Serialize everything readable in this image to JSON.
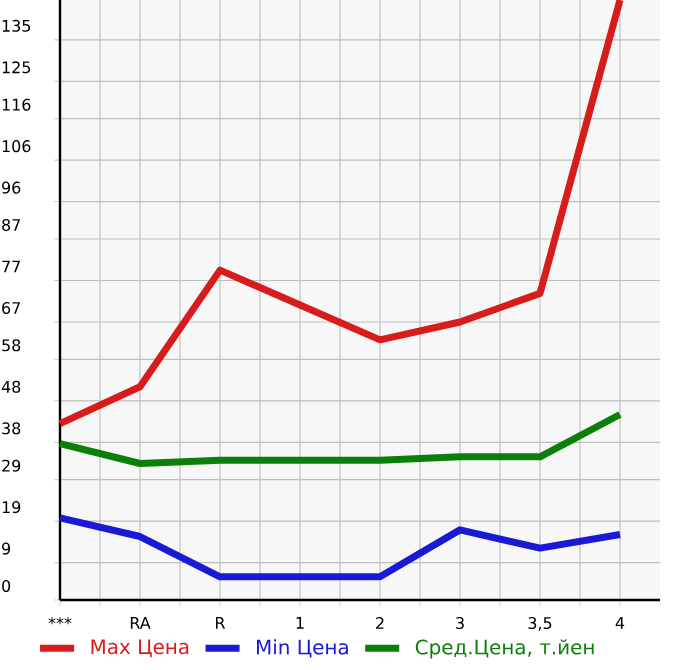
{
  "chart_data": {
    "type": "line",
    "categories": [
      "***",
      "RA",
      "R",
      "1",
      "2",
      "3",
      "3,5",
      "4"
    ],
    "series": [
      {
        "name": "Max Цена",
        "color": "#d81c1c",
        "values": [
          42.5,
          51.4,
          79.5,
          71.1,
          62.7,
          67.0,
          73.9,
          144.6
        ]
      },
      {
        "name": "Min Цена",
        "color": "#1a1ad6",
        "values": [
          19.8,
          15.3,
          5.6,
          5.6,
          5.6,
          16.9,
          12.5,
          15.8
        ]
      },
      {
        "name": "Сред.Цена, т.йен",
        "color": "#0a800a",
        "values": [
          37.7,
          32.9,
          33.7,
          33.7,
          33.7,
          34.5,
          34.5,
          44.7
        ]
      }
    ],
    "ylim": [
      0,
      144.6
    ],
    "yticks": [
      0,
      9,
      19,
      29,
      38,
      48,
      58,
      67,
      77,
      87,
      96,
      106,
      116,
      125,
      135
    ],
    "grid": true,
    "legend": "bottom",
    "marker": "none",
    "line_style": "solid"
  }
}
